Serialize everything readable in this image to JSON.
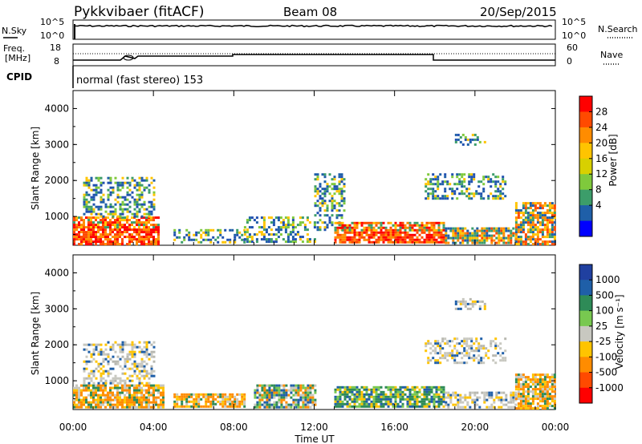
{
  "header": {
    "station": "Pykkvibaer (fitACF)",
    "beam": "Beam 08",
    "date": "20/Sep/2015"
  },
  "top_panels": {
    "nsky_label": "N.Sky",
    "nsky_ticks": [
      "10^5",
      "10^0"
    ],
    "nsearch_label": "N.Search",
    "nsearch_ticks": [
      "10^5",
      "10^0"
    ],
    "freq_label_1": "Freq.",
    "freq_label_2": "[MHz]",
    "freq_ticks": [
      "18",
      "8"
    ],
    "nave_label": "Nave",
    "nave_ticks": [
      "60",
      "0"
    ],
    "cpid_label": "CPID",
    "cpid_text": "normal (fast stereo) 153"
  },
  "chart_data": [
    {
      "type": "heatmap",
      "title": "Power",
      "ylabel": "Slant Range [km]",
      "xlabel": "",
      "ylim": [
        200,
        4500
      ],
      "xlim_hours": [
        0,
        24
      ],
      "yticks": [
        "4000",
        "3000",
        "2000",
        "1000"
      ],
      "colorbar": {
        "label": "Power [dB]",
        "ticks": [
          "28",
          "24",
          "20",
          "16",
          "12",
          "8",
          "4"
        ],
        "colors": [
          "#ff0000",
          "#ff4a00",
          "#ff8c00",
          "#ffc400",
          "#d8d000",
          "#7fc93c",
          "#3c9d6a",
          "#1f5fa8",
          "#0000ff"
        ]
      },
      "echo_regions": [
        {
          "t0": 0.0,
          "t1": 4.3,
          "r0": 250,
          "r1": 1000,
          "level": "strong"
        },
        {
          "t0": 0.5,
          "t1": 4.0,
          "r0": 1000,
          "r1": 2100,
          "level": "weak"
        },
        {
          "t0": 5.0,
          "t1": 8.5,
          "r0": 280,
          "r1": 650,
          "level": "weak"
        },
        {
          "t0": 8.5,
          "t1": 12.0,
          "r0": 280,
          "r1": 1000,
          "level": "weak"
        },
        {
          "t0": 12.0,
          "t1": 13.5,
          "r0": 600,
          "r1": 2200,
          "level": "weak"
        },
        {
          "t0": 13.0,
          "t1": 18.5,
          "r0": 250,
          "r1": 850,
          "level": "strong"
        },
        {
          "t0": 18.5,
          "t1": 22.0,
          "r0": 250,
          "r1": 700,
          "level": "medium"
        },
        {
          "t0": 22.0,
          "t1": 24.0,
          "r0": 250,
          "r1": 1400,
          "level": "medium"
        },
        {
          "t0": 17.5,
          "t1": 21.5,
          "r0": 1500,
          "r1": 2200,
          "level": "weak"
        },
        {
          "t0": 19.0,
          "t1": 20.5,
          "r0": 3000,
          "r1": 3300,
          "level": "weak"
        }
      ]
    },
    {
      "type": "heatmap",
      "title": "Velocity",
      "ylabel": "Slant Range [km]",
      "xlabel": "Time UT",
      "ylim": [
        200,
        4500
      ],
      "xlim_hours": [
        0,
        24
      ],
      "yticks": [
        "4000",
        "3000",
        "2000",
        "1000"
      ],
      "xticks": [
        "00:00",
        "04:00",
        "08:00",
        "12:00",
        "16:00",
        "20:00",
        "00:00"
      ],
      "colorbar": {
        "label": "Velocity [m s⁻¹]",
        "ticks": [
          "1000",
          "500",
          "100",
          "25",
          "-25",
          "-100",
          "-500",
          "-1000"
        ],
        "colors": [
          "#2040a0",
          "#1f5fa8",
          "#2e8b57",
          "#78c850",
          "#c8c8c0",
          "#ffc400",
          "#ff8c00",
          "#ff4a00",
          "#ff0000"
        ]
      },
      "echo_regions": [
        {
          "t0": 0.0,
          "t1": 4.5,
          "r0": 250,
          "r1": 900,
          "level": "neg"
        },
        {
          "t0": 0.5,
          "t1": 4.0,
          "r0": 900,
          "r1": 2100,
          "level": "ground"
        },
        {
          "t0": 5.0,
          "t1": 8.5,
          "r0": 280,
          "r1": 650,
          "level": "neg"
        },
        {
          "t0": 9.0,
          "t1": 12.0,
          "r0": 280,
          "r1": 900,
          "level": "mixed"
        },
        {
          "t0": 13.0,
          "t1": 18.5,
          "r0": 250,
          "r1": 850,
          "level": "pos"
        },
        {
          "t0": 18.5,
          "t1": 22.0,
          "r0": 250,
          "r1": 700,
          "level": "ground"
        },
        {
          "t0": 22.0,
          "t1": 24.0,
          "r0": 250,
          "r1": 1200,
          "level": "neg"
        },
        {
          "t0": 17.5,
          "t1": 21.5,
          "r0": 1500,
          "r1": 2200,
          "level": "ground"
        },
        {
          "t0": 19.0,
          "t1": 20.5,
          "r0": 3000,
          "r1": 3300,
          "level": "ground"
        }
      ]
    }
  ]
}
